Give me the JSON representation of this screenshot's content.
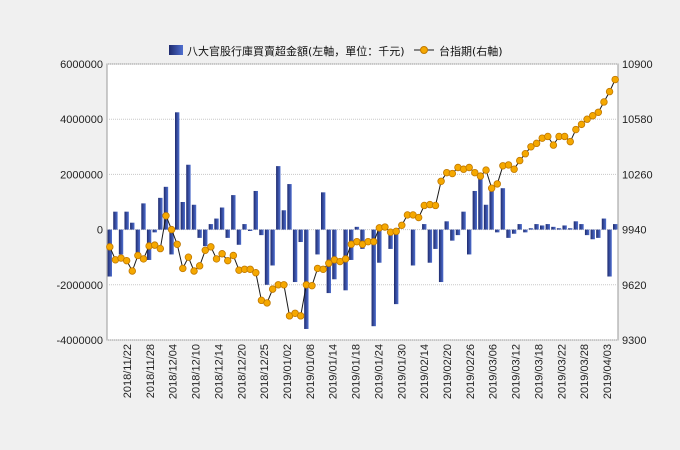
{
  "chart_data": {
    "type": "bar+line",
    "legend": {
      "bar_label": "八大官股行庫買賣超金額(左軸，單位：千元)",
      "line_label": "台指期(右軸)",
      "placement": "top-center"
    },
    "grid": true,
    "colors": {
      "bar_dark": "#1f2b6e",
      "bar_light": "#4f6fd0",
      "line": "#1a1a1a",
      "marker_fill": "#f5a800",
      "marker_edge": "#c07800",
      "grid": "#c8c8c8",
      "plot_bg": "#ffffff",
      "page_bg": "#f0f0f0"
    },
    "left_axis": {
      "ylim": [
        -4000000,
        6000000
      ],
      "ticks": [
        6000000,
        4000000,
        2000000,
        0,
        -2000000,
        -4000000
      ],
      "tick_labels": [
        "6000000",
        "4000000",
        "2000000",
        "0",
        "-2000000",
        "-4000000"
      ]
    },
    "right_axis": {
      "ylim": [
        9300,
        10900
      ],
      "ticks": [
        10900,
        10580,
        10260,
        9940,
        9620,
        9300
      ],
      "tick_labels": [
        "10900",
        "10580",
        "10260",
        "9940",
        "9620",
        "9300"
      ]
    },
    "x_tick_labels": [
      "2018/11/22",
      "2018/11/28",
      "2018/12/04",
      "2018/12/10",
      "2018/12/14",
      "2018/12/20",
      "2018/12/25",
      "2019/01/02",
      "2019/01/08",
      "2019/01/14",
      "2019/01/18",
      "2019/01/24",
      "2019/01/30",
      "2019/02/14",
      "2019/02/20",
      "2019/02/26",
      "2019/03/06",
      "2019/03/12",
      "2019/03/18",
      "2019/03/22",
      "2019/03/28",
      "2019/04/03"
    ],
    "bars": [
      -1700000,
      650000,
      -900000,
      650000,
      250000,
      -900000,
      950000,
      -1100000,
      -100000,
      1150000,
      1550000,
      -900000,
      4250000,
      1000000,
      2350000,
      900000,
      -300000,
      -600000,
      200000,
      400000,
      800000,
      -300000,
      1250000,
      -550000,
      200000,
      -50000,
      1400000,
      -200000,
      -2000000,
      -1300000,
      2300000,
      700000,
      1650000,
      -1900000,
      -450000,
      -3600000,
      0,
      -900000,
      1350000,
      -2300000,
      -1800000,
      0,
      -2200000,
      -1100000,
      100000,
      -700000,
      0,
      -3500000,
      -1200000,
      0,
      -700000,
      -2700000,
      0,
      0,
      -1300000,
      0,
      200000,
      -1200000,
      -700000,
      -1900000,
      300000,
      -400000,
      -200000,
      650000,
      -900000,
      1400000,
      2000000,
      900000,
      1500000,
      -100000,
      1500000,
      -300000,
      -150000,
      200000,
      -100000,
      50000,
      200000,
      150000,
      200000,
      100000,
      50000,
      150000,
      50000,
      300000,
      200000,
      -200000,
      -350000,
      -300000,
      400000,
      -1700000,
      200000
    ],
    "line": [
      9840,
      9765,
      9775,
      9760,
      9700,
      9790,
      9770,
      9845,
      9850,
      9830,
      10020,
      9940,
      9855,
      9715,
      9780,
      9700,
      9730,
      9820,
      9840,
      9770,
      9800,
      9760,
      9790,
      9705,
      9710,
      9710,
      9690,
      9530,
      9515,
      9595,
      9620,
      9620,
      9440,
      9455,
      9440,
      9620,
      9615,
      9715,
      9710,
      9745,
      9765,
      9755,
      9770,
      9855,
      9870,
      9855,
      9870,
      9870,
      9950,
      9955,
      9925,
      9930,
      9965,
      10025,
      10025,
      10010,
      10080,
      10085,
      10080,
      10220,
      10270,
      10265,
      10300,
      10290,
      10300,
      10270,
      10250,
      10285,
      10180,
      10205,
      10310,
      10315,
      10290,
      10340,
      10380,
      10420,
      10440,
      10470,
      10480,
      10430,
      10480,
      10480,
      10450,
      10520,
      10550,
      10580,
      10600,
      10620,
      10680,
      10740,
      10810
    ]
  }
}
